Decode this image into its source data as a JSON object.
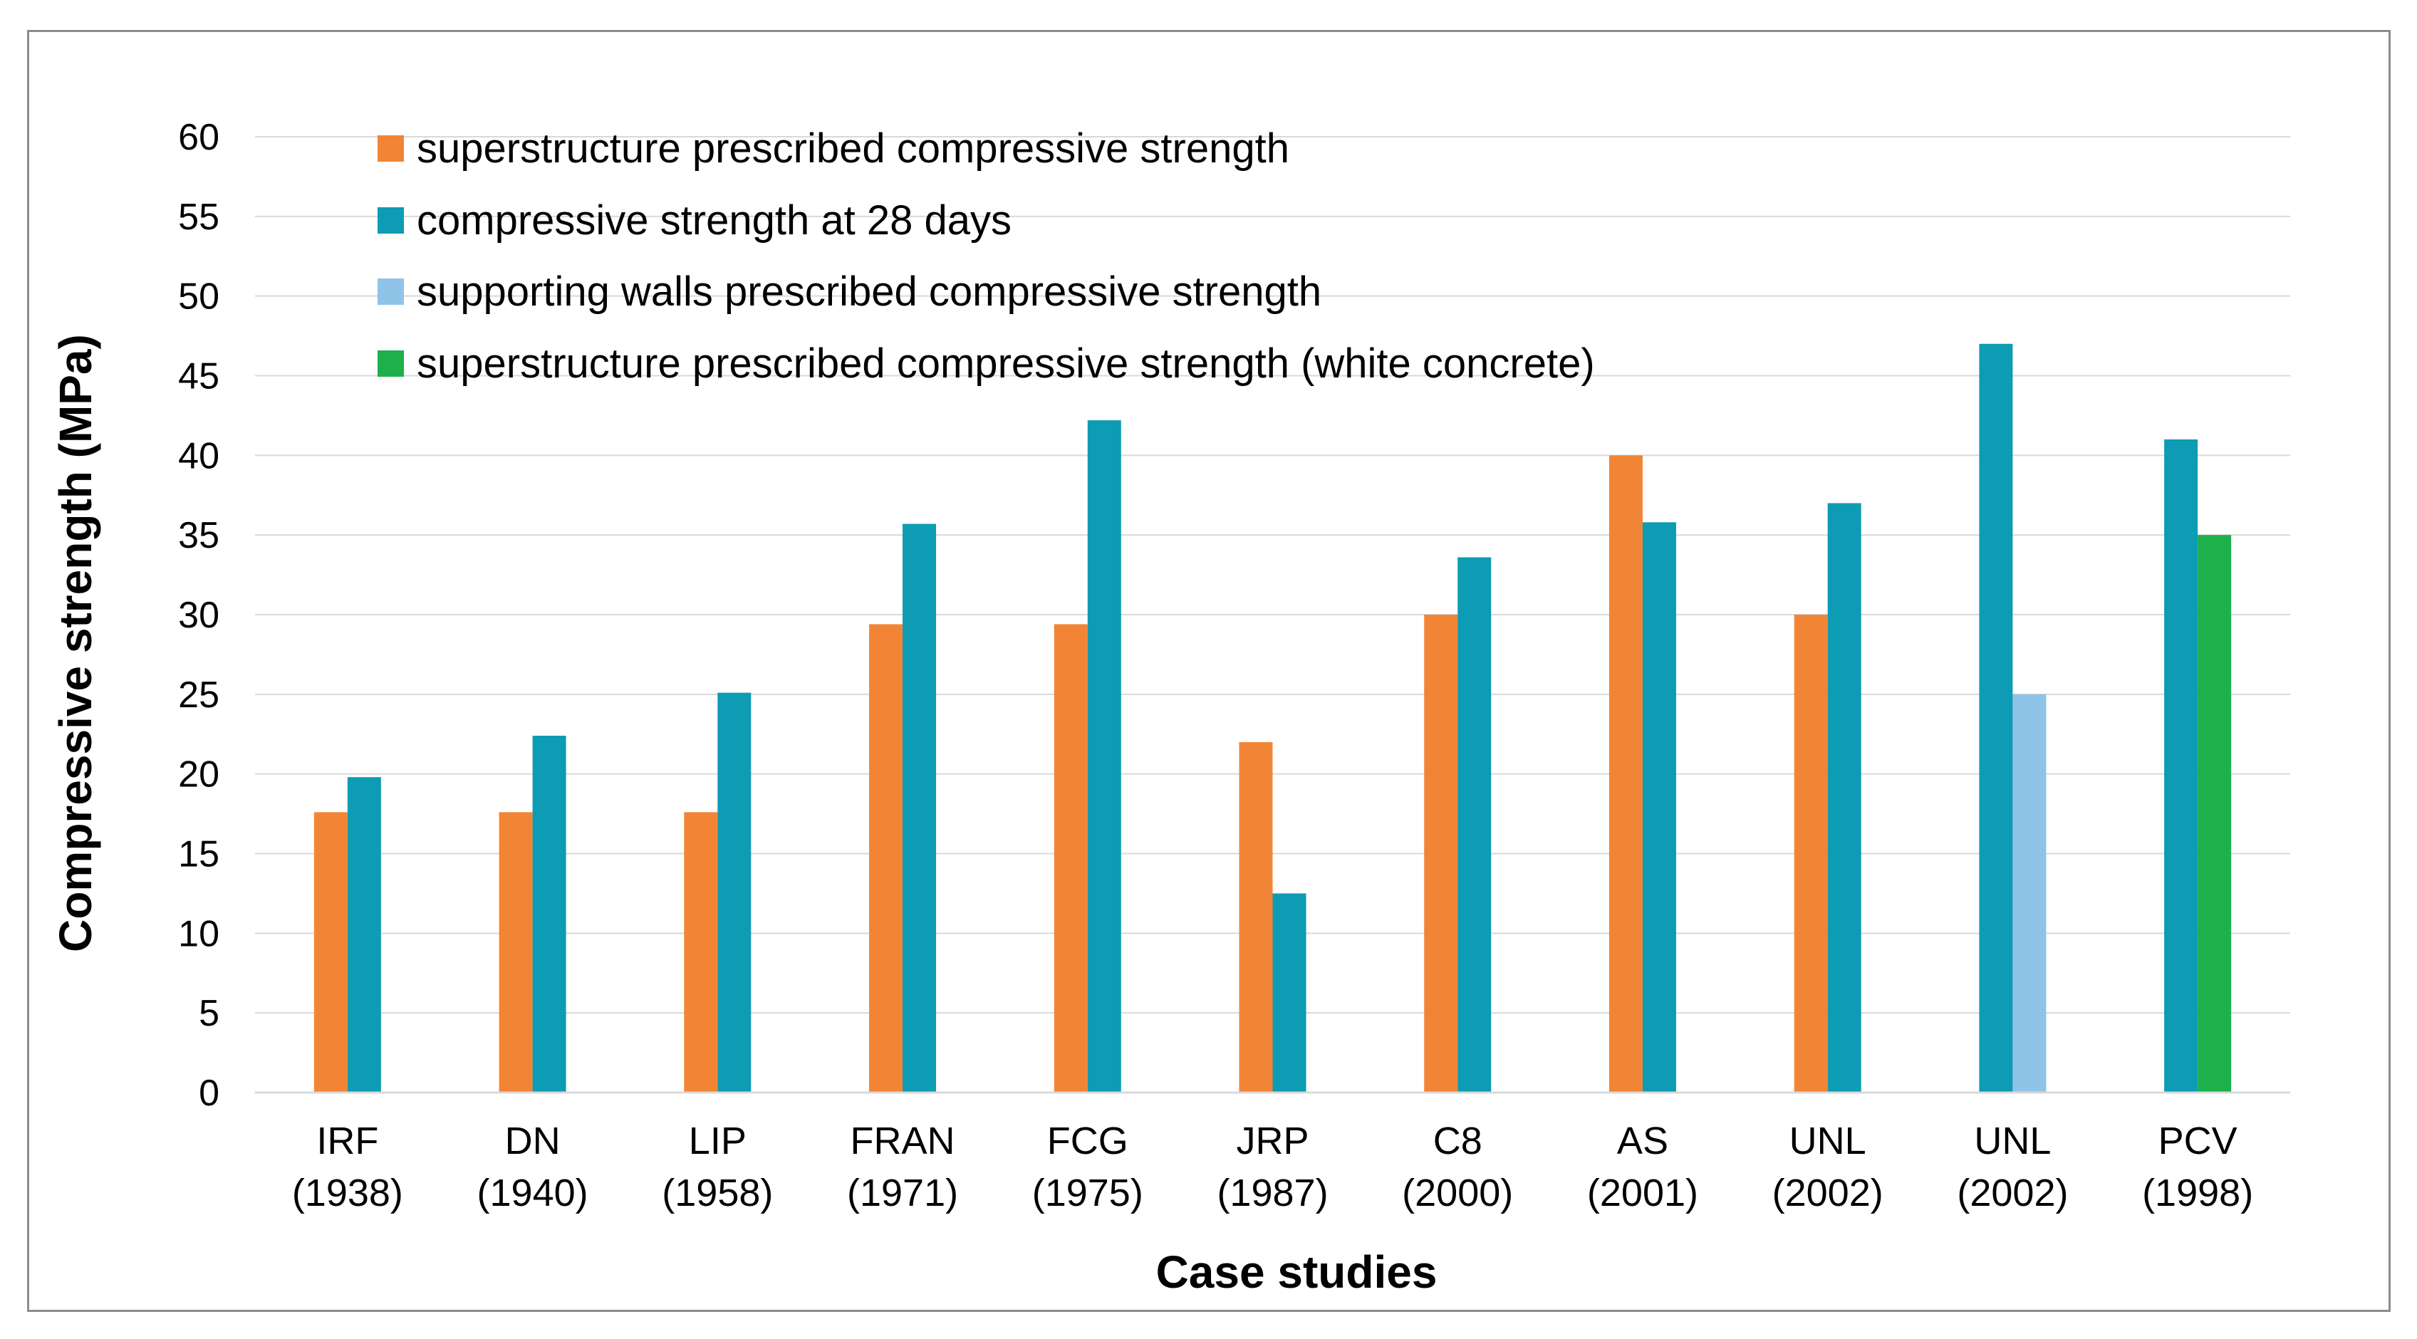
{
  "chart_data": {
    "type": "bar",
    "title": "",
    "xlabel": "Case studies",
    "ylabel": "Compressive strength (MPa)",
    "ylim": [
      0,
      60
    ],
    "ytick_step": 5,
    "grid": true,
    "legend_position": "top-left",
    "categories": [
      {
        "name": "IRF",
        "year": "(1938)"
      },
      {
        "name": "DN",
        "year": "(1940)"
      },
      {
        "name": "LIP",
        "year": "(1958)"
      },
      {
        "name": "FRAN",
        "year": "(1971)"
      },
      {
        "name": "FCG",
        "year": "(1975)"
      },
      {
        "name": "JRP",
        "year": "(1987)"
      },
      {
        "name": "C8",
        "year": "(2000)"
      },
      {
        "name": "AS",
        "year": "(2001)"
      },
      {
        "name": "UNL",
        "year": "(2002)"
      },
      {
        "name": "UNL",
        "year": "(2002)"
      },
      {
        "name": "PCV",
        "year": "(1998)"
      }
    ],
    "series": [
      {
        "name": "superstructure prescribed compressive strength",
        "color": "#F28535",
        "values": [
          17.6,
          17.6,
          17.6,
          29.4,
          29.4,
          22.0,
          30.0,
          40.0,
          30.0,
          null,
          null
        ]
      },
      {
        "name": "compressive strength at 28 days",
        "color": "#0E9BB4",
        "values": [
          19.8,
          22.4,
          25.1,
          35.7,
          42.2,
          12.5,
          33.6,
          35.8,
          37.0,
          47.0,
          41.0
        ]
      },
      {
        "name": "supporting walls prescribed compressive strength",
        "color": "#8FC4E8",
        "values": [
          null,
          null,
          null,
          null,
          null,
          null,
          null,
          null,
          null,
          25.0,
          null
        ]
      },
      {
        "name": "superstructure prescribed compressive strength (white concrete)",
        "color": "#1DB04B",
        "values": [
          null,
          null,
          null,
          null,
          null,
          null,
          null,
          null,
          null,
          null,
          35.0
        ]
      }
    ],
    "bar_slots": [
      [
        0,
        1
      ],
      [
        0,
        1
      ],
      [
        0,
        1
      ],
      [
        0,
        1
      ],
      [
        0,
        1
      ],
      [
        0,
        1
      ],
      [
        0,
        1
      ],
      [
        0,
        1
      ],
      [
        0,
        1
      ],
      [
        1,
        2
      ],
      [
        1,
        3
      ]
    ]
  }
}
